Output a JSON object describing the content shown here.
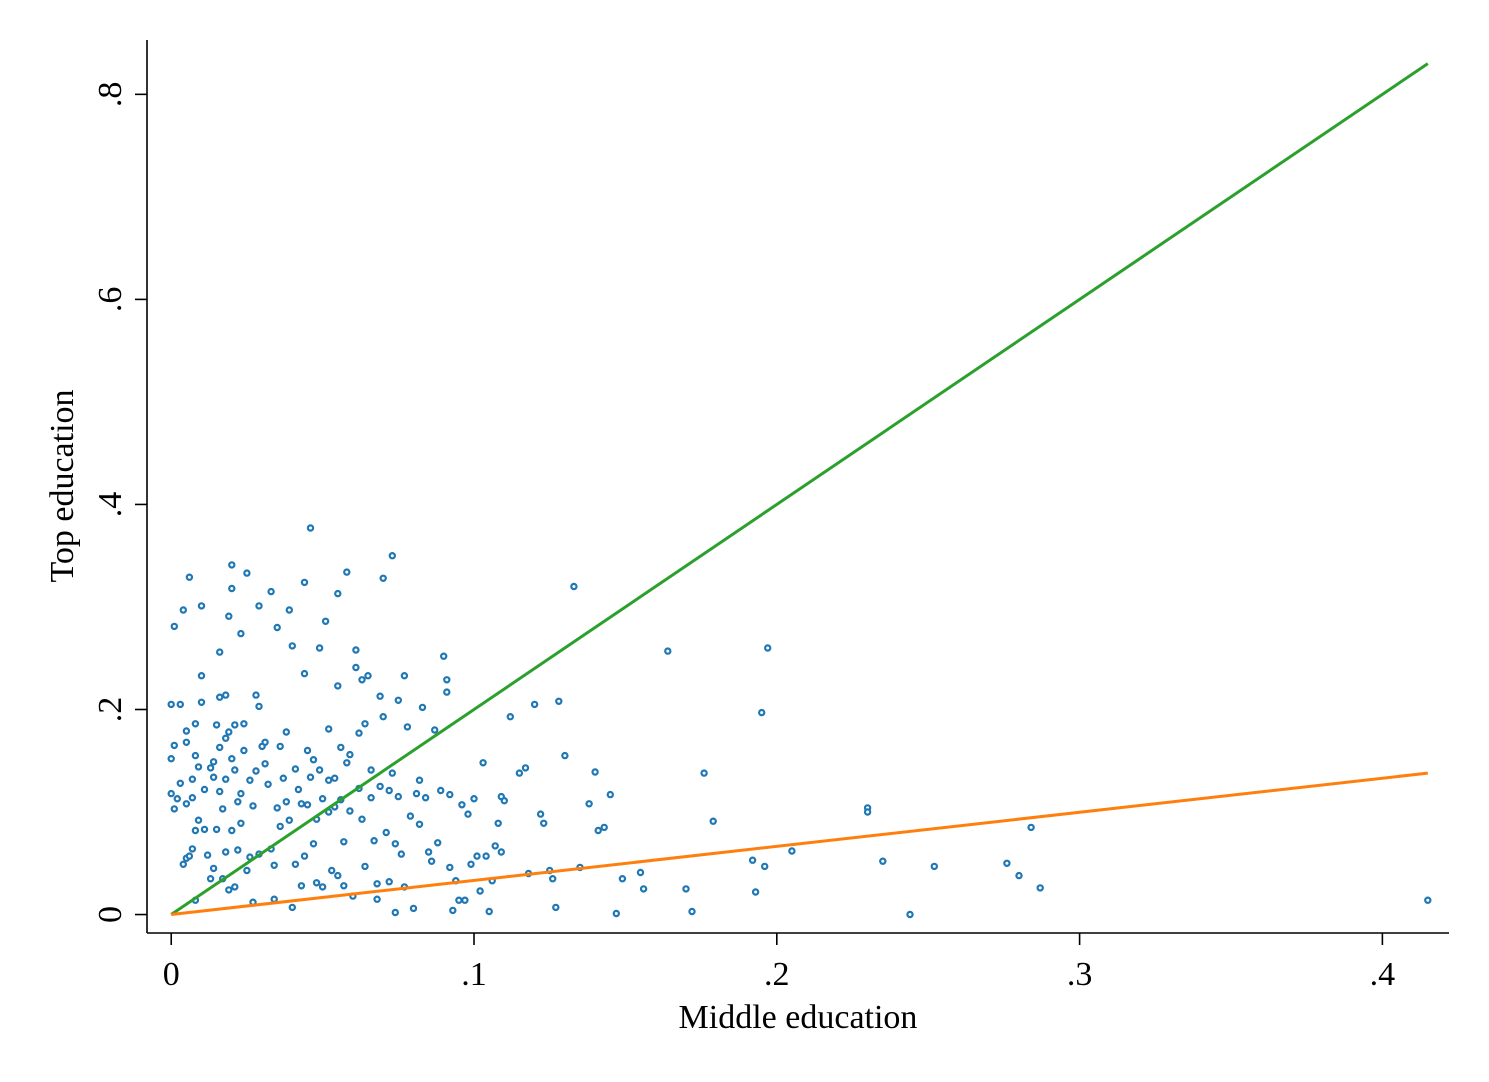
{
  "chart_data": {
    "type": "scatter",
    "xlabel": "Middle education",
    "ylabel": "Top education",
    "xlim": [
      -0.008,
      0.422
    ],
    "ylim": [
      -0.018,
      0.853
    ],
    "x_ticks": [
      0,
      0.1,
      0.2,
      0.3,
      0.4
    ],
    "x_tick_labels": [
      "0",
      ".1",
      ".2",
      ".3",
      ".4"
    ],
    "y_ticks": [
      0,
      0.2,
      0.4,
      0.6,
      0.8
    ],
    "y_tick_labels": [
      "0",
      ".2",
      ".4",
      ".6",
      ".8"
    ],
    "grid": false,
    "legend": "none",
    "colors": {
      "points": "#1f77b4",
      "line_1": "#2ca02c",
      "line_2": "#ff7f0e"
    },
    "series": [
      {
        "type": "scatter",
        "color": "#1f77b4",
        "points": [
          [
            0.0,
            0.205
          ],
          [
            0.0,
            0.152
          ],
          [
            0.0,
            0.118
          ],
          [
            0.001,
            0.165
          ],
          [
            0.001,
            0.103
          ],
          [
            0.001,
            0.281
          ],
          [
            0.002,
            0.113
          ],
          [
            0.003,
            0.205
          ],
          [
            0.003,
            0.128
          ],
          [
            0.004,
            0.297
          ],
          [
            0.004,
            0.049
          ],
          [
            0.005,
            0.168
          ],
          [
            0.005,
            0.108
          ],
          [
            0.005,
            0.179
          ],
          [
            0.005,
            0.055
          ],
          [
            0.006,
            0.329
          ],
          [
            0.006,
            0.057
          ],
          [
            0.007,
            0.114
          ],
          [
            0.007,
            0.064
          ],
          [
            0.007,
            0.132
          ],
          [
            0.008,
            0.155
          ],
          [
            0.008,
            0.186
          ],
          [
            0.008,
            0.014
          ],
          [
            0.008,
            0.082
          ],
          [
            0.009,
            0.092
          ],
          [
            0.009,
            0.144
          ],
          [
            0.01,
            0.233
          ],
          [
            0.01,
            0.301
          ],
          [
            0.01,
            0.207
          ],
          [
            0.011,
            0.122
          ],
          [
            0.011,
            0.083
          ],
          [
            0.012,
            0.058
          ],
          [
            0.013,
            0.143
          ],
          [
            0.013,
            0.035
          ],
          [
            0.014,
            0.134
          ],
          [
            0.014,
            0.149
          ],
          [
            0.014,
            0.045
          ],
          [
            0.015,
            0.083
          ],
          [
            0.015,
            0.185
          ],
          [
            0.016,
            0.12
          ],
          [
            0.016,
            0.212
          ],
          [
            0.016,
            0.256
          ],
          [
            0.016,
            0.163
          ],
          [
            0.017,
            0.103
          ],
          [
            0.017,
            0.035
          ],
          [
            0.018,
            0.172
          ],
          [
            0.018,
            0.214
          ],
          [
            0.018,
            0.132
          ],
          [
            0.018,
            0.061
          ],
          [
            0.019,
            0.291
          ],
          [
            0.019,
            0.178
          ],
          [
            0.019,
            0.024
          ],
          [
            0.02,
            0.341
          ],
          [
            0.02,
            0.318
          ],
          [
            0.02,
            0.152
          ],
          [
            0.02,
            0.082
          ],
          [
            0.021,
            0.185
          ],
          [
            0.021,
            0.141
          ],
          [
            0.021,
            0.027
          ],
          [
            0.022,
            0.11
          ],
          [
            0.022,
            0.063
          ],
          [
            0.023,
            0.274
          ],
          [
            0.023,
            0.118
          ],
          [
            0.023,
            0.089
          ],
          [
            0.024,
            0.186
          ],
          [
            0.024,
            0.16
          ],
          [
            0.025,
            0.333
          ],
          [
            0.025,
            0.043
          ],
          [
            0.026,
            0.131
          ],
          [
            0.026,
            0.056
          ],
          [
            0.027,
            0.106
          ],
          [
            0.027,
            0.012
          ],
          [
            0.028,
            0.214
          ],
          [
            0.028,
            0.14
          ],
          [
            0.029,
            0.059
          ],
          [
            0.029,
            0.301
          ],
          [
            0.029,
            0.203
          ],
          [
            0.03,
            0.164
          ],
          [
            0.031,
            0.168
          ],
          [
            0.031,
            0.147
          ],
          [
            0.032,
            0.127
          ],
          [
            0.033,
            0.315
          ],
          [
            0.033,
            0.064
          ],
          [
            0.034,
            0.048
          ],
          [
            0.034,
            0.015
          ],
          [
            0.035,
            0.28
          ],
          [
            0.035,
            0.104
          ],
          [
            0.036,
            0.164
          ],
          [
            0.036,
            0.086
          ],
          [
            0.037,
            0.133
          ],
          [
            0.038,
            0.178
          ],
          [
            0.038,
            0.11
          ],
          [
            0.039,
            0.297
          ],
          [
            0.039,
            0.092
          ],
          [
            0.04,
            0.262
          ],
          [
            0.04,
            0.007
          ],
          [
            0.041,
            0.142
          ],
          [
            0.041,
            0.049
          ],
          [
            0.042,
            0.122
          ],
          [
            0.043,
            0.108
          ],
          [
            0.043,
            0.028
          ],
          [
            0.044,
            0.324
          ],
          [
            0.044,
            0.235
          ],
          [
            0.044,
            0.057
          ],
          [
            0.045,
            0.16
          ],
          [
            0.045,
            0.107
          ],
          [
            0.046,
            0.377
          ],
          [
            0.046,
            0.134
          ],
          [
            0.047,
            0.151
          ],
          [
            0.047,
            0.069
          ],
          [
            0.048,
            0.093
          ],
          [
            0.048,
            0.031
          ],
          [
            0.049,
            0.26
          ],
          [
            0.049,
            0.141
          ],
          [
            0.05,
            0.113
          ],
          [
            0.05,
            0.027
          ],
          [
            0.051,
            0.286
          ],
          [
            0.052,
            0.181
          ],
          [
            0.052,
            0.131
          ],
          [
            0.052,
            0.1
          ],
          [
            0.053,
            0.043
          ],
          [
            0.054,
            0.133
          ],
          [
            0.054,
            0.105
          ],
          [
            0.055,
            0.313
          ],
          [
            0.055,
            0.223
          ],
          [
            0.055,
            0.038
          ],
          [
            0.056,
            0.163
          ],
          [
            0.056,
            0.112
          ],
          [
            0.057,
            0.071
          ],
          [
            0.057,
            0.028
          ],
          [
            0.058,
            0.334
          ],
          [
            0.058,
            0.148
          ],
          [
            0.059,
            0.101
          ],
          [
            0.059,
            0.156
          ],
          [
            0.06,
            0.018
          ],
          [
            0.061,
            0.258
          ],
          [
            0.061,
            0.241
          ],
          [
            0.062,
            0.177
          ],
          [
            0.062,
            0.123
          ],
          [
            0.063,
            0.093
          ],
          [
            0.063,
            0.229
          ],
          [
            0.064,
            0.186
          ],
          [
            0.064,
            0.047
          ],
          [
            0.065,
            0.233
          ],
          [
            0.066,
            0.141
          ],
          [
            0.066,
            0.114
          ],
          [
            0.067,
            0.072
          ],
          [
            0.068,
            0.03
          ],
          [
            0.068,
            0.015
          ],
          [
            0.069,
            0.213
          ],
          [
            0.069,
            0.125
          ],
          [
            0.07,
            0.328
          ],
          [
            0.07,
            0.193
          ],
          [
            0.071,
            0.08
          ],
          [
            0.072,
            0.032
          ],
          [
            0.072,
            0.121
          ],
          [
            0.073,
            0.35
          ],
          [
            0.073,
            0.138
          ],
          [
            0.074,
            0.069
          ],
          [
            0.074,
            0.002
          ],
          [
            0.075,
            0.209
          ],
          [
            0.075,
            0.115
          ],
          [
            0.076,
            0.059
          ],
          [
            0.077,
            0.233
          ],
          [
            0.077,
            0.027
          ],
          [
            0.078,
            0.183
          ],
          [
            0.079,
            0.096
          ],
          [
            0.08,
            0.006
          ],
          [
            0.081,
            0.118
          ],
          [
            0.082,
            0.131
          ],
          [
            0.082,
            0.088
          ],
          [
            0.083,
            0.202
          ],
          [
            0.084,
            0.114
          ],
          [
            0.085,
            0.061
          ],
          [
            0.086,
            0.052
          ],
          [
            0.087,
            0.18
          ],
          [
            0.088,
            0.07
          ],
          [
            0.089,
            0.121
          ],
          [
            0.09,
            0.252
          ],
          [
            0.091,
            0.217
          ],
          [
            0.091,
            0.229
          ],
          [
            0.092,
            0.117
          ],
          [
            0.092,
            0.046
          ],
          [
            0.093,
            0.004
          ],
          [
            0.094,
            0.033
          ],
          [
            0.095,
            0.014
          ],
          [
            0.096,
            0.107
          ],
          [
            0.097,
            0.014
          ],
          [
            0.098,
            0.098
          ],
          [
            0.099,
            0.049
          ],
          [
            0.1,
            0.113
          ],
          [
            0.101,
            0.057
          ],
          [
            0.102,
            0.023
          ],
          [
            0.103,
            0.148
          ],
          [
            0.104,
            0.057
          ],
          [
            0.105,
            0.003
          ],
          [
            0.106,
            0.033
          ],
          [
            0.107,
            0.067
          ],
          [
            0.108,
            0.089
          ],
          [
            0.109,
            0.115
          ],
          [
            0.11,
            0.111
          ],
          [
            0.109,
            0.061
          ],
          [
            0.112,
            0.193
          ],
          [
            0.115,
            0.138
          ],
          [
            0.117,
            0.143
          ],
          [
            0.118,
            0.04
          ],
          [
            0.12,
            0.205
          ],
          [
            0.122,
            0.098
          ],
          [
            0.123,
            0.089
          ],
          [
            0.125,
            0.043
          ],
          [
            0.126,
            0.035
          ],
          [
            0.127,
            0.007
          ],
          [
            0.128,
            0.208
          ],
          [
            0.13,
            0.155
          ],
          [
            0.133,
            0.32
          ],
          [
            0.135,
            0.046
          ],
          [
            0.138,
            0.108
          ],
          [
            0.14,
            0.139
          ],
          [
            0.141,
            0.082
          ],
          [
            0.143,
            0.085
          ],
          [
            0.145,
            0.117
          ],
          [
            0.147,
            0.001
          ],
          [
            0.149,
            0.035
          ],
          [
            0.155,
            0.041
          ],
          [
            0.156,
            0.025
          ],
          [
            0.164,
            0.257
          ],
          [
            0.17,
            0.025
          ],
          [
            0.172,
            0.003
          ],
          [
            0.176,
            0.138
          ],
          [
            0.179,
            0.091
          ],
          [
            0.192,
            0.053
          ],
          [
            0.193,
            0.022
          ],
          [
            0.195,
            0.197
          ],
          [
            0.197,
            0.26
          ],
          [
            0.196,
            0.047
          ],
          [
            0.205,
            0.062
          ],
          [
            0.23,
            0.104
          ],
          [
            0.23,
            0.1
          ],
          [
            0.235,
            0.052
          ],
          [
            0.244,
            0.0
          ],
          [
            0.252,
            0.047
          ],
          [
            0.276,
            0.05
          ],
          [
            0.28,
            0.038
          ],
          [
            0.284,
            0.085
          ],
          [
            0.287,
            0.026
          ],
          [
            0.415,
            0.014
          ]
        ]
      },
      {
        "type": "line",
        "color": "#2ca02c",
        "points": [
          [
            0.0,
            0.0
          ],
          [
            0.415,
            0.83
          ]
        ]
      },
      {
        "type": "line",
        "color": "#ff7f0e",
        "points": [
          [
            0.0,
            0.0
          ],
          [
            0.415,
            0.138
          ]
        ]
      }
    ]
  }
}
